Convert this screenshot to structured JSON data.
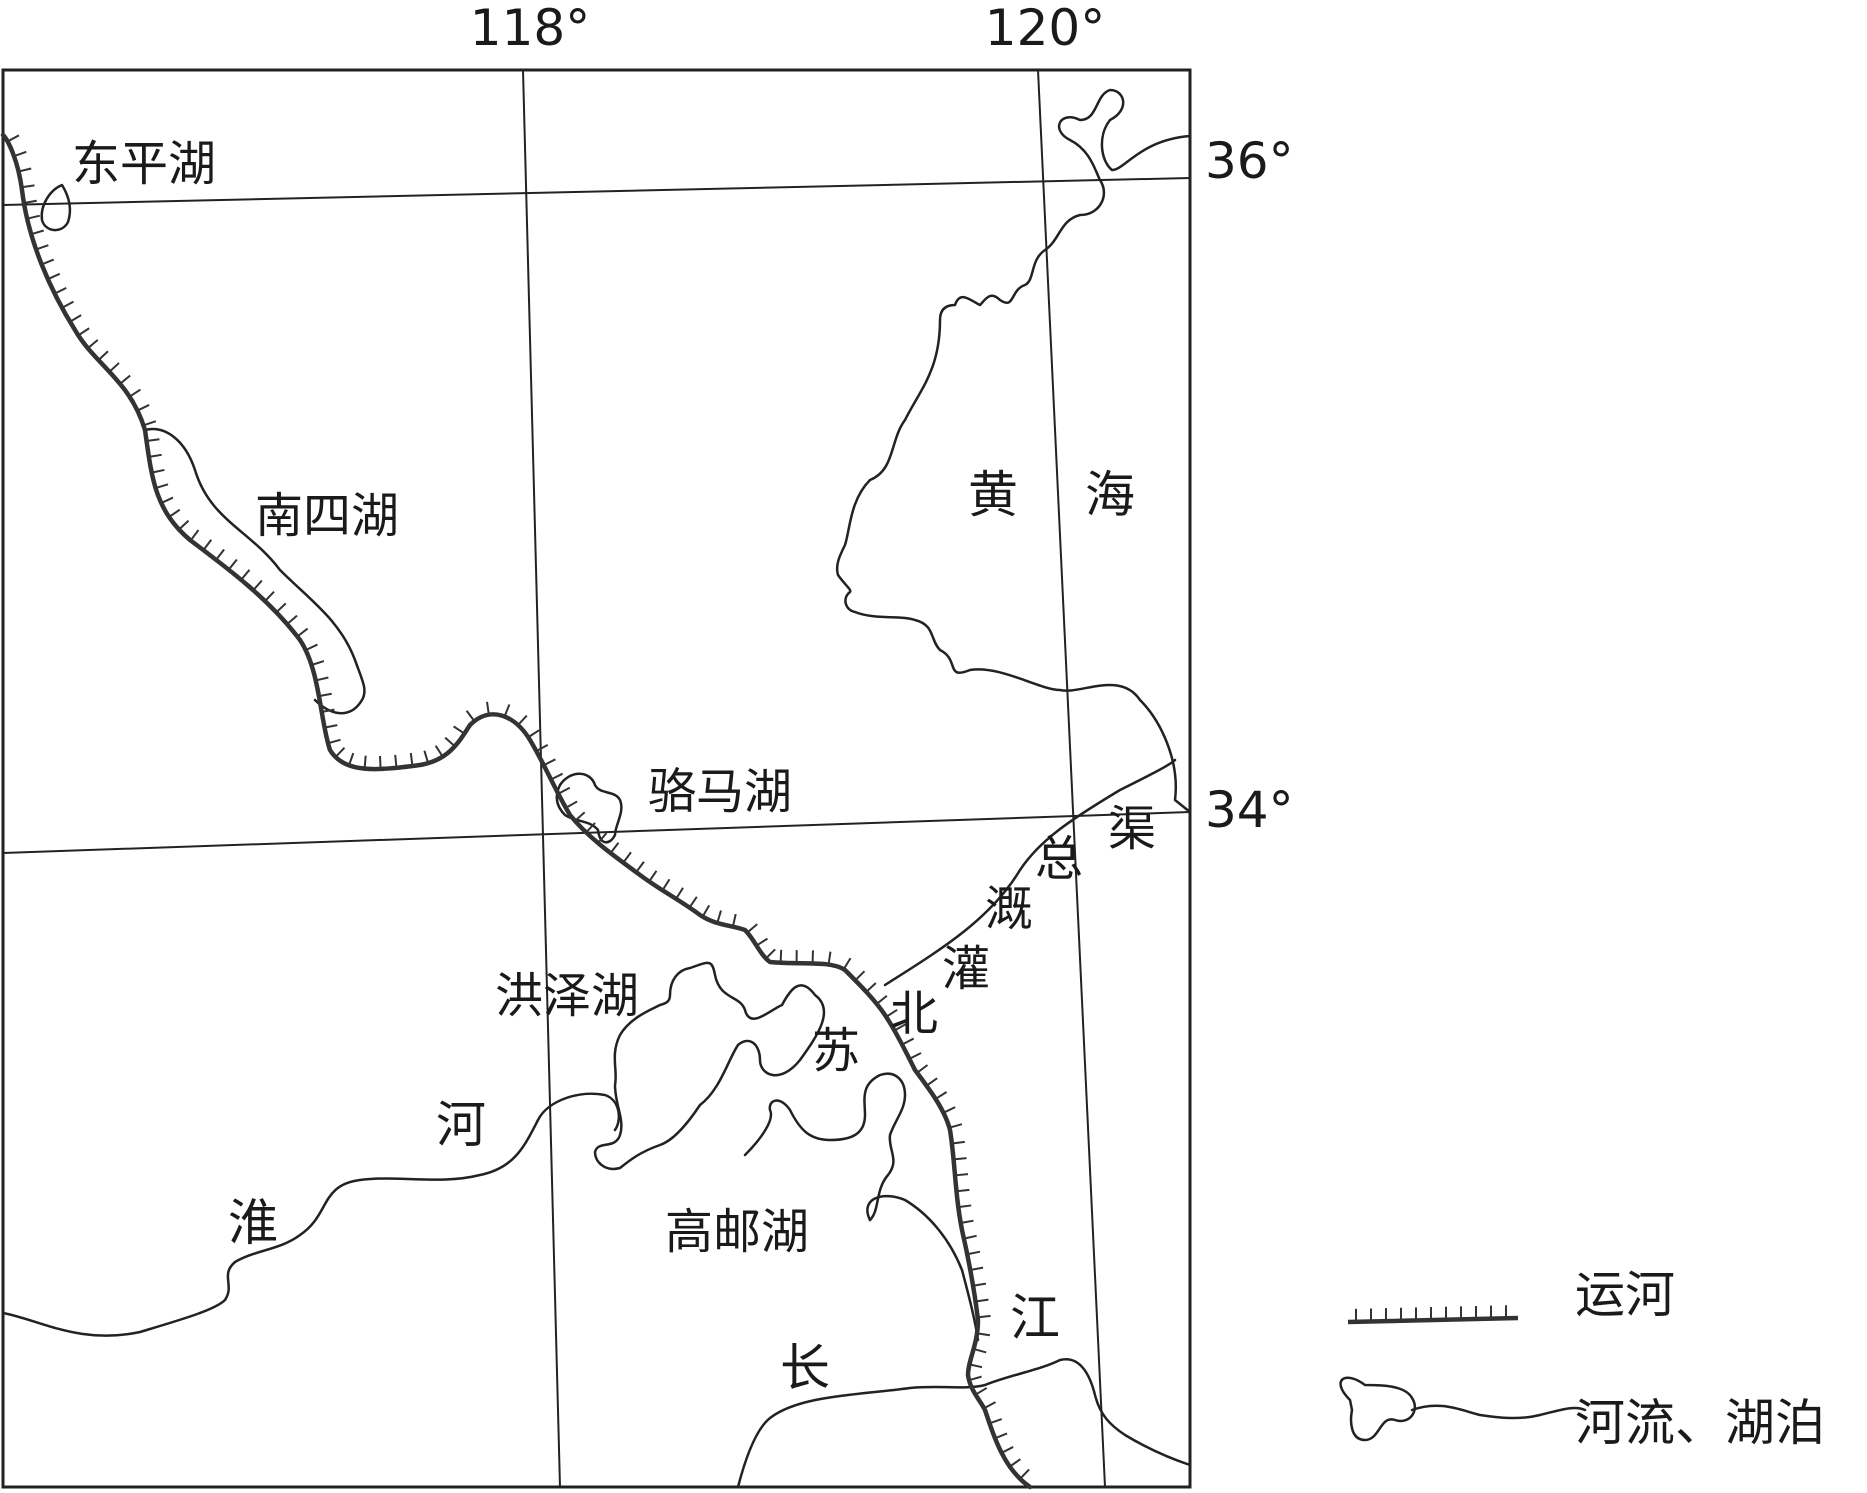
{
  "map": {
    "lon_labels": [
      "118°",
      "120°"
    ],
    "lat_labels": [
      "36°",
      "34°"
    ],
    "lakes": [
      "东平湖",
      "南四湖",
      "骆马湖",
      "洪泽湖",
      "高邮湖"
    ],
    "sea": {
      "left": "黄",
      "right": "海"
    },
    "huaihe": {
      "huai": "淮",
      "he": "河"
    },
    "yangtze": {
      "chang": "长",
      "jiang": "江"
    },
    "canal_name_chars": [
      "苏",
      "北",
      "灌",
      "溉",
      "总",
      "渠"
    ]
  },
  "legend": {
    "canal_label": "运河",
    "river_lake_label": "河流、湖泊"
  }
}
